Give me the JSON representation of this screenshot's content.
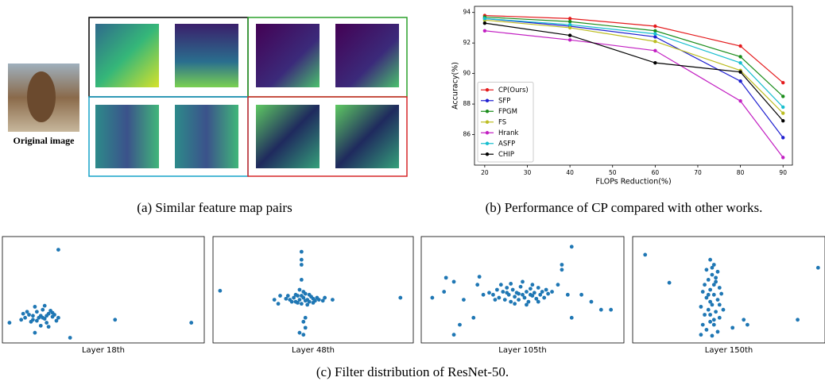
{
  "panel_a": {
    "original_label": "Original image"
  },
  "captions": [
    "(a)  Similar feature map pairs",
    "(b)  Performance of CP compared with other works.",
    "(c)  Filter distribution of ResNet-50."
  ],
  "chart_data": [
    {
      "type": "line",
      "xlabel": "FLOPs Reduction(%)",
      "ylabel": "Accuracy(%)",
      "x": [
        20,
        40,
        60,
        80,
        90
      ],
      "xlim": [
        17.6,
        92.2
      ],
      "xticks": [
        20,
        30,
        40,
        50,
        60,
        70,
        80,
        90
      ],
      "ylim": [
        84,
        94.4
      ],
      "yticks": [
        86,
        88,
        90,
        92,
        94
      ],
      "legend": "lower left",
      "series": [
        {
          "name": "CP(Ours)",
          "color": "#e41a1c",
          "values": [
            93.8,
            93.6,
            93.1,
            91.8,
            89.4
          ]
        },
        {
          "name": "SFP",
          "color": "#1f1fd0",
          "values": [
            93.6,
            93.1,
            92.4,
            89.5,
            85.8
          ]
        },
        {
          "name": "FPGM",
          "color": "#1a8c1a",
          "values": [
            93.7,
            93.4,
            92.8,
            91.1,
            88.5
          ]
        },
        {
          "name": "FS",
          "color": "#bcbd22",
          "values": [
            93.5,
            93.0,
            92.1,
            90.2,
            87.4
          ]
        },
        {
          "name": "Hrank",
          "color": "#c21fc2",
          "values": [
            92.8,
            92.2,
            91.5,
            88.2,
            84.5
          ]
        },
        {
          "name": "ASFP",
          "color": "#17becf",
          "values": [
            93.6,
            93.2,
            92.6,
            90.7,
            87.8
          ]
        },
        {
          "name": "CHIP",
          "color": "#000000",
          "values": [
            93.3,
            92.5,
            90.7,
            90.1,
            86.9
          ]
        }
      ]
    },
    {
      "type": "scatter",
      "xlabel": "Layer 18th",
      "color": "#1f77b4",
      "xlim": [
        0,
        100
      ],
      "ylim": [
        0,
        100
      ],
      "x": [
        27,
        56,
        95,
        2,
        33,
        15,
        10,
        12,
        14,
        16,
        18,
        20,
        22,
        24,
        26,
        19,
        21,
        13,
        17,
        23,
        25,
        11,
        15,
        20,
        27,
        8,
        9,
        18,
        22,
        16,
        24,
        14,
        21,
        19
      ],
      "y": [
        90,
        20,
        17,
        17,
        2,
        7,
        22,
        25,
        20,
        28,
        24,
        21,
        26,
        23,
        19,
        30,
        17,
        18,
        22,
        29,
        25,
        28,
        33,
        34,
        22,
        20,
        26,
        14,
        13,
        19,
        27,
        24,
        24,
        22
      ]
    },
    {
      "type": "scatter",
      "xlabel": "Layer 48th",
      "color": "#1f77b4",
      "xlim": [
        0,
        100
      ],
      "ylim": [
        0,
        100
      ],
      "x": [
        2,
        95,
        44,
        44,
        44,
        46,
        45,
        43,
        45,
        46,
        44,
        30,
        60,
        56,
        33,
        32,
        38,
        40,
        41,
        42,
        43,
        44,
        45,
        46,
        47,
        48,
        49,
        50,
        51,
        52,
        39,
        42,
        44,
        46,
        48,
        45,
        43,
        41,
        50,
        53,
        36,
        37,
        55,
        47
      ],
      "y": [
        49,
        42,
        88,
        80,
        75,
        12,
        5,
        7,
        18,
        22,
        60,
        40,
        40,
        42,
        44,
        36,
        40,
        42,
        38,
        44,
        40,
        36,
        42,
        46,
        40,
        38,
        43,
        41,
        39,
        42,
        38,
        37,
        44,
        39,
        45,
        48,
        50,
        45,
        37,
        40,
        41,
        44,
        39,
        35
      ]
    },
    {
      "type": "scatter",
      "xlabel": "Layer 105th",
      "color": "#1f77b4",
      "xlim": [
        0,
        100
      ],
      "ylim": [
        0,
        100
      ],
      "x": [
        4,
        11,
        10,
        15,
        20,
        18,
        15,
        25,
        28,
        27,
        70,
        70,
        75,
        75,
        80,
        85,
        90,
        95,
        73,
        68,
        30,
        35,
        37,
        38,
        40,
        41,
        42,
        43,
        44,
        45,
        46,
        47,
        48,
        49,
        50,
        51,
        52,
        53,
        54,
        55,
        56,
        57,
        58,
        59,
        60,
        61,
        62,
        39,
        44,
        50,
        55,
        46,
        52,
        36,
        58,
        63,
        65,
        33,
        48,
        42,
        54
      ],
      "y": [
        42,
        62,
        48,
        58,
        40,
        15,
        5,
        22,
        63,
        55,
        75,
        70,
        93,
        22,
        45,
        38,
        30,
        30,
        45,
        55,
        45,
        45,
        50,
        42,
        48,
        40,
        52,
        45,
        38,
        50,
        43,
        47,
        40,
        53,
        45,
        42,
        48,
        38,
        51,
        44,
        47,
        41,
        52,
        45,
        48,
        42,
        50,
        55,
        56,
        58,
        55,
        36,
        35,
        40,
        38,
        46,
        48,
        47,
        46,
        47,
        45
      ]
    },
    {
      "type": "scatter",
      "xlabel": "Layer 150th",
      "color": "#1f77b4",
      "xlim": [
        0,
        100
      ],
      "ylim": [
        0,
        100
      ],
      "x": [
        5,
        18,
        87,
        58,
        98,
        35,
        52,
        60,
        40,
        42,
        38,
        41,
        44,
        39,
        43,
        37,
        45,
        40,
        42,
        38,
        44,
        41,
        39,
        43,
        37,
        45,
        40,
        42,
        38,
        44,
        41,
        36,
        46,
        35,
        47,
        40,
        42,
        39,
        43,
        41,
        40,
        42,
        36,
        45
      ],
      "y": [
        85,
        57,
        20,
        20,
        72,
        5,
        12,
        15,
        80,
        75,
        70,
        65,
        68,
        60,
        58,
        55,
        52,
        50,
        45,
        42,
        40,
        35,
        30,
        28,
        25,
        22,
        18,
        15,
        10,
        8,
        4,
        48,
        46,
        33,
        30,
        38,
        55,
        45,
        62,
        72,
        25,
        20,
        15,
        35
      ]
    }
  ]
}
